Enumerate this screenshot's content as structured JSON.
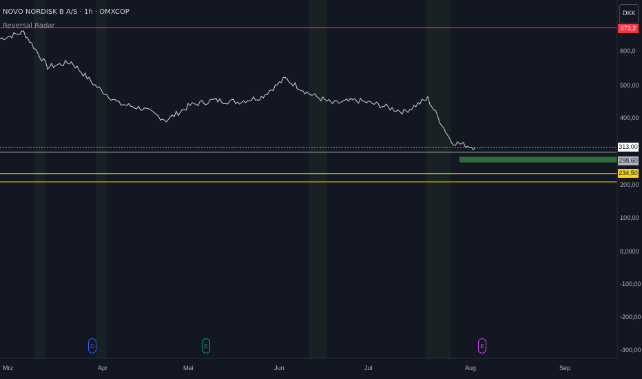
{
  "header": {
    "title": "NOVO NORDISK B A/S · 1h · OMXCOP",
    "indicator": "Reversal Radar"
  },
  "currency_button": "DKK",
  "colors": {
    "background": "#131722",
    "price_line": "#d1d4dc",
    "resistance": "#f23645",
    "support_yellow": "#f5d31b",
    "zone_green": "#2e6b3a",
    "band": "#1c2a28"
  },
  "price_axis": {
    "ticks": [
      "600,0",
      "500,00",
      "400,00",
      "200,00",
      "100,00",
      "0,0000",
      "-100,00",
      "-200,00",
      "-300,00"
    ],
    "tags": {
      "red": "673,2",
      "current": "313,00",
      "gray": "298,60",
      "yellow": "234,50"
    }
  },
  "time_axis": {
    "months": [
      "Mrz",
      "Apr",
      "Mai",
      "Jun",
      "Jul",
      "Aug",
      "Sep"
    ]
  },
  "events": [
    {
      "icon": "dividend-icon",
      "letter": "D",
      "color": "#2962ff"
    },
    {
      "icon": "earnings-icon",
      "letter": "E",
      "color": "#089981"
    },
    {
      "icon": "split-earnings-icon",
      "letter": "E",
      "color": "#e040fb"
    }
  ],
  "chart_data": {
    "type": "line",
    "title": "NOVO NORDISK B A/S · 1h · OMXCOP",
    "xlabel": "",
    "ylabel": "",
    "ylim": [
      -300,
      680
    ],
    "x_ticks": [
      "Mrz",
      "Apr",
      "Mai",
      "Jun",
      "Jul",
      "Aug",
      "Sep"
    ],
    "y_ticks": [
      -300,
      -200,
      -100,
      0,
      100,
      200,
      400,
      500,
      600
    ],
    "grid": false,
    "series": [
      {
        "x": [
          "Mrz",
          "",
          "",
          "",
          "Apr",
          "",
          "",
          "",
          "Mai",
          "",
          "",
          "",
          "Jun",
          "",
          "",
          "",
          "Jul",
          "",
          "",
          "",
          "Aug"
        ],
        "values": [
          640,
          660,
          555,
          570,
          500,
          445,
          430,
          395,
          440,
          455,
          450,
          465,
          520,
          475,
          445,
          455,
          440,
          420,
          460,
          330,
          313
        ]
      }
    ],
    "levels": [
      {
        "price": 673.2
      },
      {
        "price": 313.0
      },
      {
        "price": 298.6
      },
      {
        "price": 234.5
      }
    ],
    "zones": [
      {
        "from": 268,
        "to": 285
      }
    ]
  }
}
